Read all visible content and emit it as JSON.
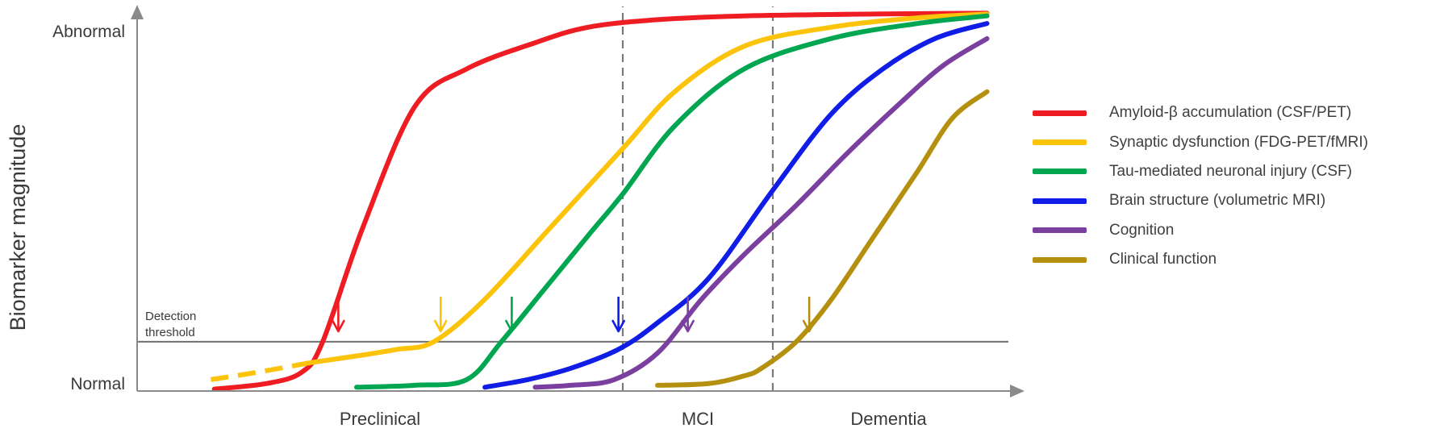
{
  "chart_data": {
    "type": "line",
    "ylabel": "Biomarker magnitude",
    "ytick_labels": {
      "top": "Abnormal",
      "bottom": "Normal"
    },
    "threshold": {
      "label_line1": "Detection",
      "label_line2": "threshold",
      "value": 0.13
    },
    "stages": [
      {
        "label": "Preclinical",
        "start": 0.0,
        "end": 0.56
      },
      {
        "label": "MCI",
        "start": 0.56,
        "end": 0.733
      },
      {
        "label": "Dementia",
        "start": 0.733,
        "end": 1.0
      }
    ],
    "xlim": [
      0,
      1
    ],
    "ylim": [
      0,
      1
    ],
    "series": [
      {
        "name": "Amyloid-β accumulation (CSF/PET)",
        "color": "#ee1c23",
        "x": [
          0.089,
          0.15,
          0.19,
          0.214,
          0.26,
          0.32,
          0.38,
          0.46,
          0.52,
          0.6,
          0.7,
          0.85,
          0.98
        ],
        "y": [
          0.005,
          0.02,
          0.05,
          0.13,
          0.43,
          0.75,
          0.85,
          0.92,
          0.96,
          0.98,
          0.99,
          0.995,
          0.997
        ],
        "detect_x": 0.232
      },
      {
        "name": "Synaptic dysfunction (FDG-PET/fMRI)",
        "color": "#fcc30b",
        "x": [
          0.085,
          0.14,
          0.2,
          0.26,
          0.3,
          0.342,
          0.4,
          0.48,
          0.56,
          0.62,
          0.7,
          0.8,
          0.9,
          0.98
        ],
        "y": [
          0.03,
          0.05,
          0.075,
          0.095,
          0.11,
          0.13,
          0.24,
          0.44,
          0.64,
          0.79,
          0.91,
          0.96,
          0.985,
          0.995
        ],
        "dashed_until": 0.2,
        "detect_x": 0.35
      },
      {
        "name": "Tau-mediated neuronal injury (CSF)",
        "color": "#00a650",
        "x": [
          0.253,
          0.32,
          0.38,
          0.42,
          0.47,
          0.52,
          0.56,
          0.62,
          0.7,
          0.8,
          0.9,
          0.98
        ],
        "y": [
          0.01,
          0.015,
          0.03,
          0.13,
          0.27,
          0.41,
          0.52,
          0.7,
          0.85,
          0.93,
          0.97,
          0.99
        ],
        "detect_x": 0.432
      },
      {
        "name": "Brain structure (volumetric MRI)",
        "color": "#0f1de6",
        "x": [
          0.401,
          0.45,
          0.5,
          0.555,
          0.6,
          0.66,
          0.733,
          0.8,
          0.86,
          0.92,
          0.98
        ],
        "y": [
          0.01,
          0.03,
          0.06,
          0.11,
          0.18,
          0.3,
          0.53,
          0.73,
          0.85,
          0.93,
          0.97
        ],
        "detect_x": 0.555
      },
      {
        "name": "Cognition",
        "color": "#7b3fa0",
        "x": [
          0.459,
          0.5,
          0.55,
          0.6,
          0.65,
          0.7,
          0.76,
          0.82,
          0.88,
          0.93,
          0.98
        ],
        "y": [
          0.01,
          0.015,
          0.03,
          0.1,
          0.24,
          0.36,
          0.49,
          0.63,
          0.76,
          0.86,
          0.93
        ],
        "detect_x": 0.635
      },
      {
        "name": "Clinical function",
        "color": "#b5900f",
        "x": [
          0.6,
          0.66,
          0.7,
          0.72,
          0.76,
          0.8,
          0.85,
          0.9,
          0.94,
          0.98
        ],
        "y": [
          0.015,
          0.02,
          0.04,
          0.06,
          0.13,
          0.24,
          0.41,
          0.58,
          0.72,
          0.79
        ],
        "detect_x": 0.775
      }
    ]
  }
}
